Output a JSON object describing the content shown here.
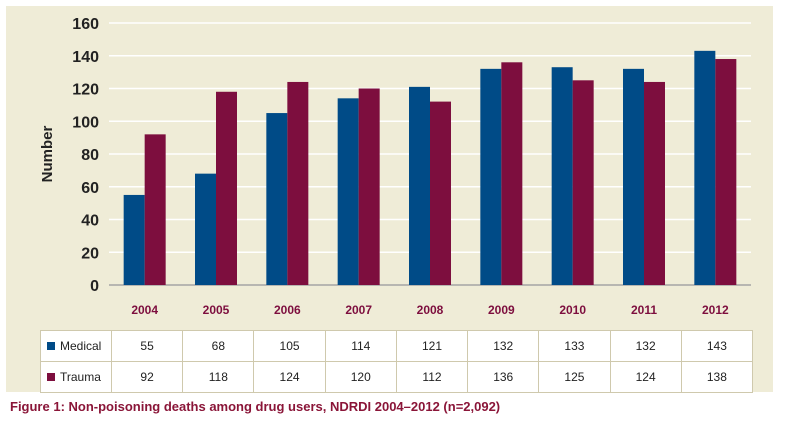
{
  "colors": {
    "medical": "#004b87",
    "trauma": "#7d0e3e",
    "panel": "#efecd7",
    "grid": "#ffffff",
    "caption": "#8a1538"
  },
  "caption": "Figure 1: Non-poisoning deaths among drug users, NDRDI 2004–2012 (n=2,092)",
  "chart_data": {
    "type": "bar",
    "title": "",
    "xlabel": "",
    "ylabel": "Number",
    "ylim": [
      0,
      160
    ],
    "yticks": [
      0,
      20,
      40,
      60,
      80,
      100,
      120,
      140,
      160
    ],
    "grid": true,
    "legend": "data table below chart",
    "categories": [
      "2004",
      "2005",
      "2006",
      "2007",
      "2008",
      "2009",
      "2010",
      "2011",
      "2012"
    ],
    "series": [
      {
        "name": "Medical",
        "values": [
          55,
          68,
          105,
          114,
          121,
          132,
          133,
          132,
          143
        ]
      },
      {
        "name": "Trauma",
        "values": [
          92,
          118,
          124,
          120,
          112,
          136,
          125,
          124,
          138
        ]
      }
    ]
  }
}
